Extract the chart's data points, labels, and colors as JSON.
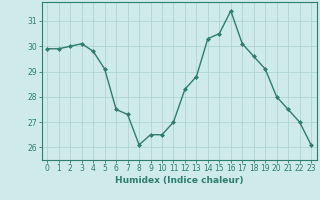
{
  "x": [
    0,
    1,
    2,
    3,
    4,
    5,
    6,
    7,
    8,
    9,
    10,
    11,
    12,
    13,
    14,
    15,
    16,
    17,
    18,
    19,
    20,
    21,
    22,
    23
  ],
  "y": [
    29.9,
    29.9,
    30.0,
    30.1,
    29.8,
    29.1,
    27.5,
    27.3,
    26.1,
    26.5,
    26.5,
    27.0,
    28.3,
    28.8,
    30.3,
    30.5,
    31.4,
    30.1,
    29.6,
    29.1,
    28.0,
    27.5,
    27.0,
    26.1
  ],
  "line_color": "#2e7d6e",
  "marker": "D",
  "marker_size": 2.0,
  "bg_color": "#ceeaea",
  "grid_color": "#aad0d0",
  "xlabel": "Humidex (Indice chaleur)",
  "ylim": [
    25.5,
    31.75
  ],
  "yticks": [
    26,
    27,
    28,
    29,
    30,
    31
  ],
  "xticks": [
    0,
    1,
    2,
    3,
    4,
    5,
    6,
    7,
    8,
    9,
    10,
    11,
    12,
    13,
    14,
    15,
    16,
    17,
    18,
    19,
    20,
    21,
    22,
    23
  ],
  "xlabel_fontsize": 6.5,
  "tick_fontsize": 5.5,
  "line_width": 1.0,
  "spine_color": "#2e7d6e"
}
